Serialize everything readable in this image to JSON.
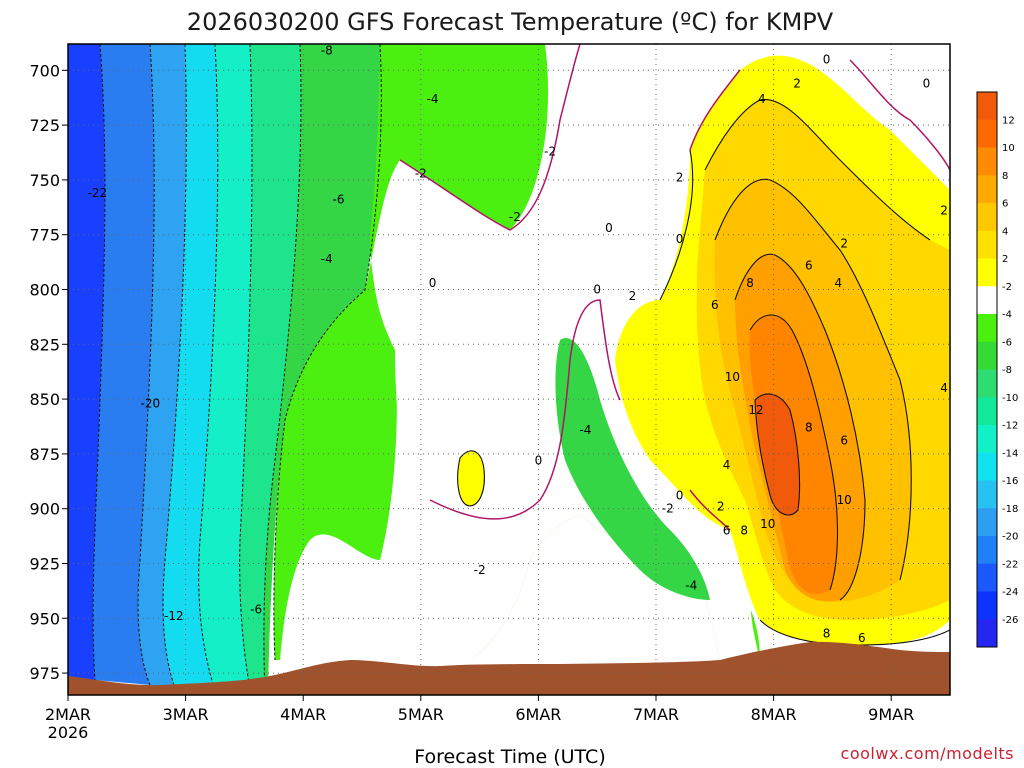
{
  "header": {
    "title": "2026030200 GFS Forecast Temperature (ºC) for KMPV"
  },
  "footer": {
    "xlabel": "Forecast Time (UTC)",
    "credit": "coolwx.com/modelts"
  },
  "chart_data": {
    "type": "heatmap",
    "title": "2026030200 GFS Forecast Temperature (ºC) for KMPV",
    "xlabel": "Forecast Time (UTC)",
    "ylabel": "",
    "x_ticks": [
      "2MAR",
      "3MAR",
      "4MAR",
      "5MAR",
      "6MAR",
      "7MAR",
      "8MAR",
      "9MAR"
    ],
    "x_tick_sub": "2026",
    "y_ticks": [
      700,
      725,
      750,
      775,
      800,
      825,
      850,
      875,
      900,
      925,
      950,
      975
    ],
    "y_axis": "pressure (hPa), inverted",
    "x_range": [
      0,
      7.5
    ],
    "y_range": [
      688,
      985
    ],
    "grid": true,
    "colorbar": {
      "levels": [
        -28,
        -26,
        -24,
        -22,
        -20,
        -18,
        -16,
        -14,
        -12,
        -10,
        -8,
        -6,
        -4,
        -2,
        2,
        4,
        6,
        8,
        10,
        12,
        14
      ],
      "tick_labels": [
        "12",
        "10",
        "8",
        "6",
        "4",
        "2",
        "-2",
        "-4",
        "-6",
        "-8",
        "-10",
        "-12",
        "-14",
        "-16",
        "-18",
        "-20",
        "-22",
        "-24",
        "-26"
      ],
      "colors": [
        "#2626f2",
        "#0d33ff",
        "#1959ff",
        "#2080f5",
        "#2e9ef0",
        "#27c2f2",
        "#10e2f0",
        "#12f0c8",
        "#12e89a",
        "#2edc72",
        "#36da36",
        "#4cf010",
        "#ffffff",
        "#ffff00",
        "#ffe100",
        "#ffc800",
        "#ffaa00",
        "#ff8c00",
        "#ff6a00",
        "#f05a0a"
      ]
    },
    "contour_labels": [
      {
        "t": 0.25,
        "p": 756,
        "v": "-22"
      },
      {
        "t": 0.7,
        "p": 852,
        "v": "-20"
      },
      {
        "t": 0.9,
        "p": 949,
        "v": "-12"
      },
      {
        "t": 1.6,
        "p": 946,
        "v": "-6"
      },
      {
        "t": 2.2,
        "p": 691,
        "v": "-8"
      },
      {
        "t": 2.3,
        "p": 759,
        "v": "-6"
      },
      {
        "t": 2.2,
        "p": 786,
        "v": "-4"
      },
      {
        "t": 3.1,
        "p": 713,
        "v": "-4"
      },
      {
        "t": 3.0,
        "p": 747,
        "v": "-2"
      },
      {
        "t": 3.1,
        "p": 797,
        "v": "0"
      },
      {
        "t": 3.8,
        "p": 767,
        "v": "-2"
      },
      {
        "t": 4.1,
        "p": 737,
        "v": "-2"
      },
      {
        "t": 4.6,
        "p": 772,
        "v": "0"
      },
      {
        "t": 4.5,
        "p": 800,
        "v": "0"
      },
      {
        "t": 4.8,
        "p": 803,
        "v": "2"
      },
      {
        "t": 4.4,
        "p": 864,
        "v": "-4"
      },
      {
        "t": 4.0,
        "p": 878,
        "v": "0"
      },
      {
        "t": 3.5,
        "p": 928,
        "v": "-2"
      },
      {
        "t": 5.2,
        "p": 749,
        "v": "2"
      },
      {
        "t": 5.2,
        "p": 777,
        "v": "0"
      },
      {
        "t": 5.2,
        "p": 894,
        "v": "0"
      },
      {
        "t": 5.1,
        "p": 900,
        "v": "-2"
      },
      {
        "t": 5.3,
        "p": 935,
        "v": "-4"
      },
      {
        "t": 5.6,
        "p": 880,
        "v": "4"
      },
      {
        "t": 5.55,
        "p": 899,
        "v": "2"
      },
      {
        "t": 5.5,
        "p": 807,
        "v": "6"
      },
      {
        "t": 5.8,
        "p": 797,
        "v": "8"
      },
      {
        "t": 5.65,
        "p": 840,
        "v": "10"
      },
      {
        "t": 5.85,
        "p": 855,
        "v": "12"
      },
      {
        "t": 5.6,
        "p": 910,
        "v": "6"
      },
      {
        "t": 5.75,
        "p": 910,
        "v": "8"
      },
      {
        "t": 5.95,
        "p": 907,
        "v": "10"
      },
      {
        "t": 6.3,
        "p": 863,
        "v": "8"
      },
      {
        "t": 6.6,
        "p": 869,
        "v": "6"
      },
      {
        "t": 6.6,
        "p": 896,
        "v": "10"
      },
      {
        "t": 6.45,
        "p": 957,
        "v": "8"
      },
      {
        "t": 6.75,
        "p": 959,
        "v": "6"
      },
      {
        "t": 6.3,
        "p": 789,
        "v": "6"
      },
      {
        "t": 6.55,
        "p": 797,
        "v": "4"
      },
      {
        "t": 6.6,
        "p": 779,
        "v": "2"
      },
      {
        "t": 5.9,
        "p": 713,
        "v": "4"
      },
      {
        "t": 6.2,
        "p": 706,
        "v": "2"
      },
      {
        "t": 6.45,
        "p": 695,
        "v": "0"
      },
      {
        "t": 7.3,
        "p": 706,
        "v": "0"
      },
      {
        "t": 7.45,
        "p": 764,
        "v": "2"
      },
      {
        "t": 7.45,
        "p": 845,
        "v": "4"
      }
    ]
  }
}
